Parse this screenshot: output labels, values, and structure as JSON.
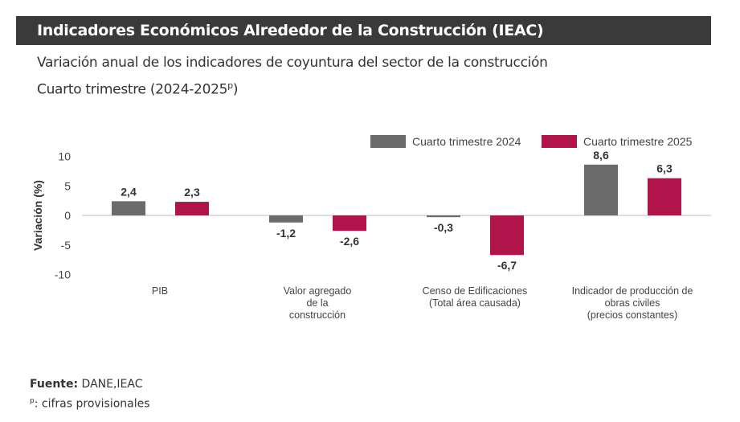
{
  "header": {
    "title": "Indicadores Económicos Alrededor de la Construcción (IEAC)"
  },
  "subtitle": {
    "line1": "Variación anual de los indicadores de coyuntura del sector de la construcción",
    "line2_prefix": "Cuarto trimestre (2024-2025",
    "line2_sup": "p",
    "line2_suffix": ")"
  },
  "footer": {
    "source_label": "Fuente:",
    "source_value": " DANE,IEAC",
    "note_sup": "p",
    "note_text": ": cifras provisionales"
  },
  "chart_data": {
    "type": "bar",
    "ylabel": "Variación (%)",
    "ylim": [
      -10,
      10
    ],
    "yticks": [
      "10",
      "5",
      "0",
      "-5",
      "-10"
    ],
    "ytick_values": [
      10,
      5,
      0,
      -5,
      -10
    ],
    "categories": [
      [
        "PIB"
      ],
      [
        "Valor agregado",
        "de la",
        "construcción"
      ],
      [
        "Censo de Edificaciones",
        "(Total área causada)"
      ],
      [
        "Indicador de producción de",
        "obras civiles",
        "(precios constantes)"
      ]
    ],
    "series": [
      {
        "name": "Cuarto trimestre 2024",
        "color": "#6b6b6b",
        "values": [
          2.4,
          -1.2,
          -0.3,
          8.6
        ],
        "labels": [
          "2,4",
          "-1,2",
          "-0,3",
          "8,6"
        ]
      },
      {
        "name": "Cuarto trimestre 2025",
        "color": "#b0144a",
        "values": [
          2.3,
          -2.6,
          -6.7,
          6.3
        ],
        "labels": [
          "2,3",
          "-2,6",
          "-6,7",
          "6,3"
        ]
      }
    ],
    "legend": "top-right",
    "grid": false
  }
}
